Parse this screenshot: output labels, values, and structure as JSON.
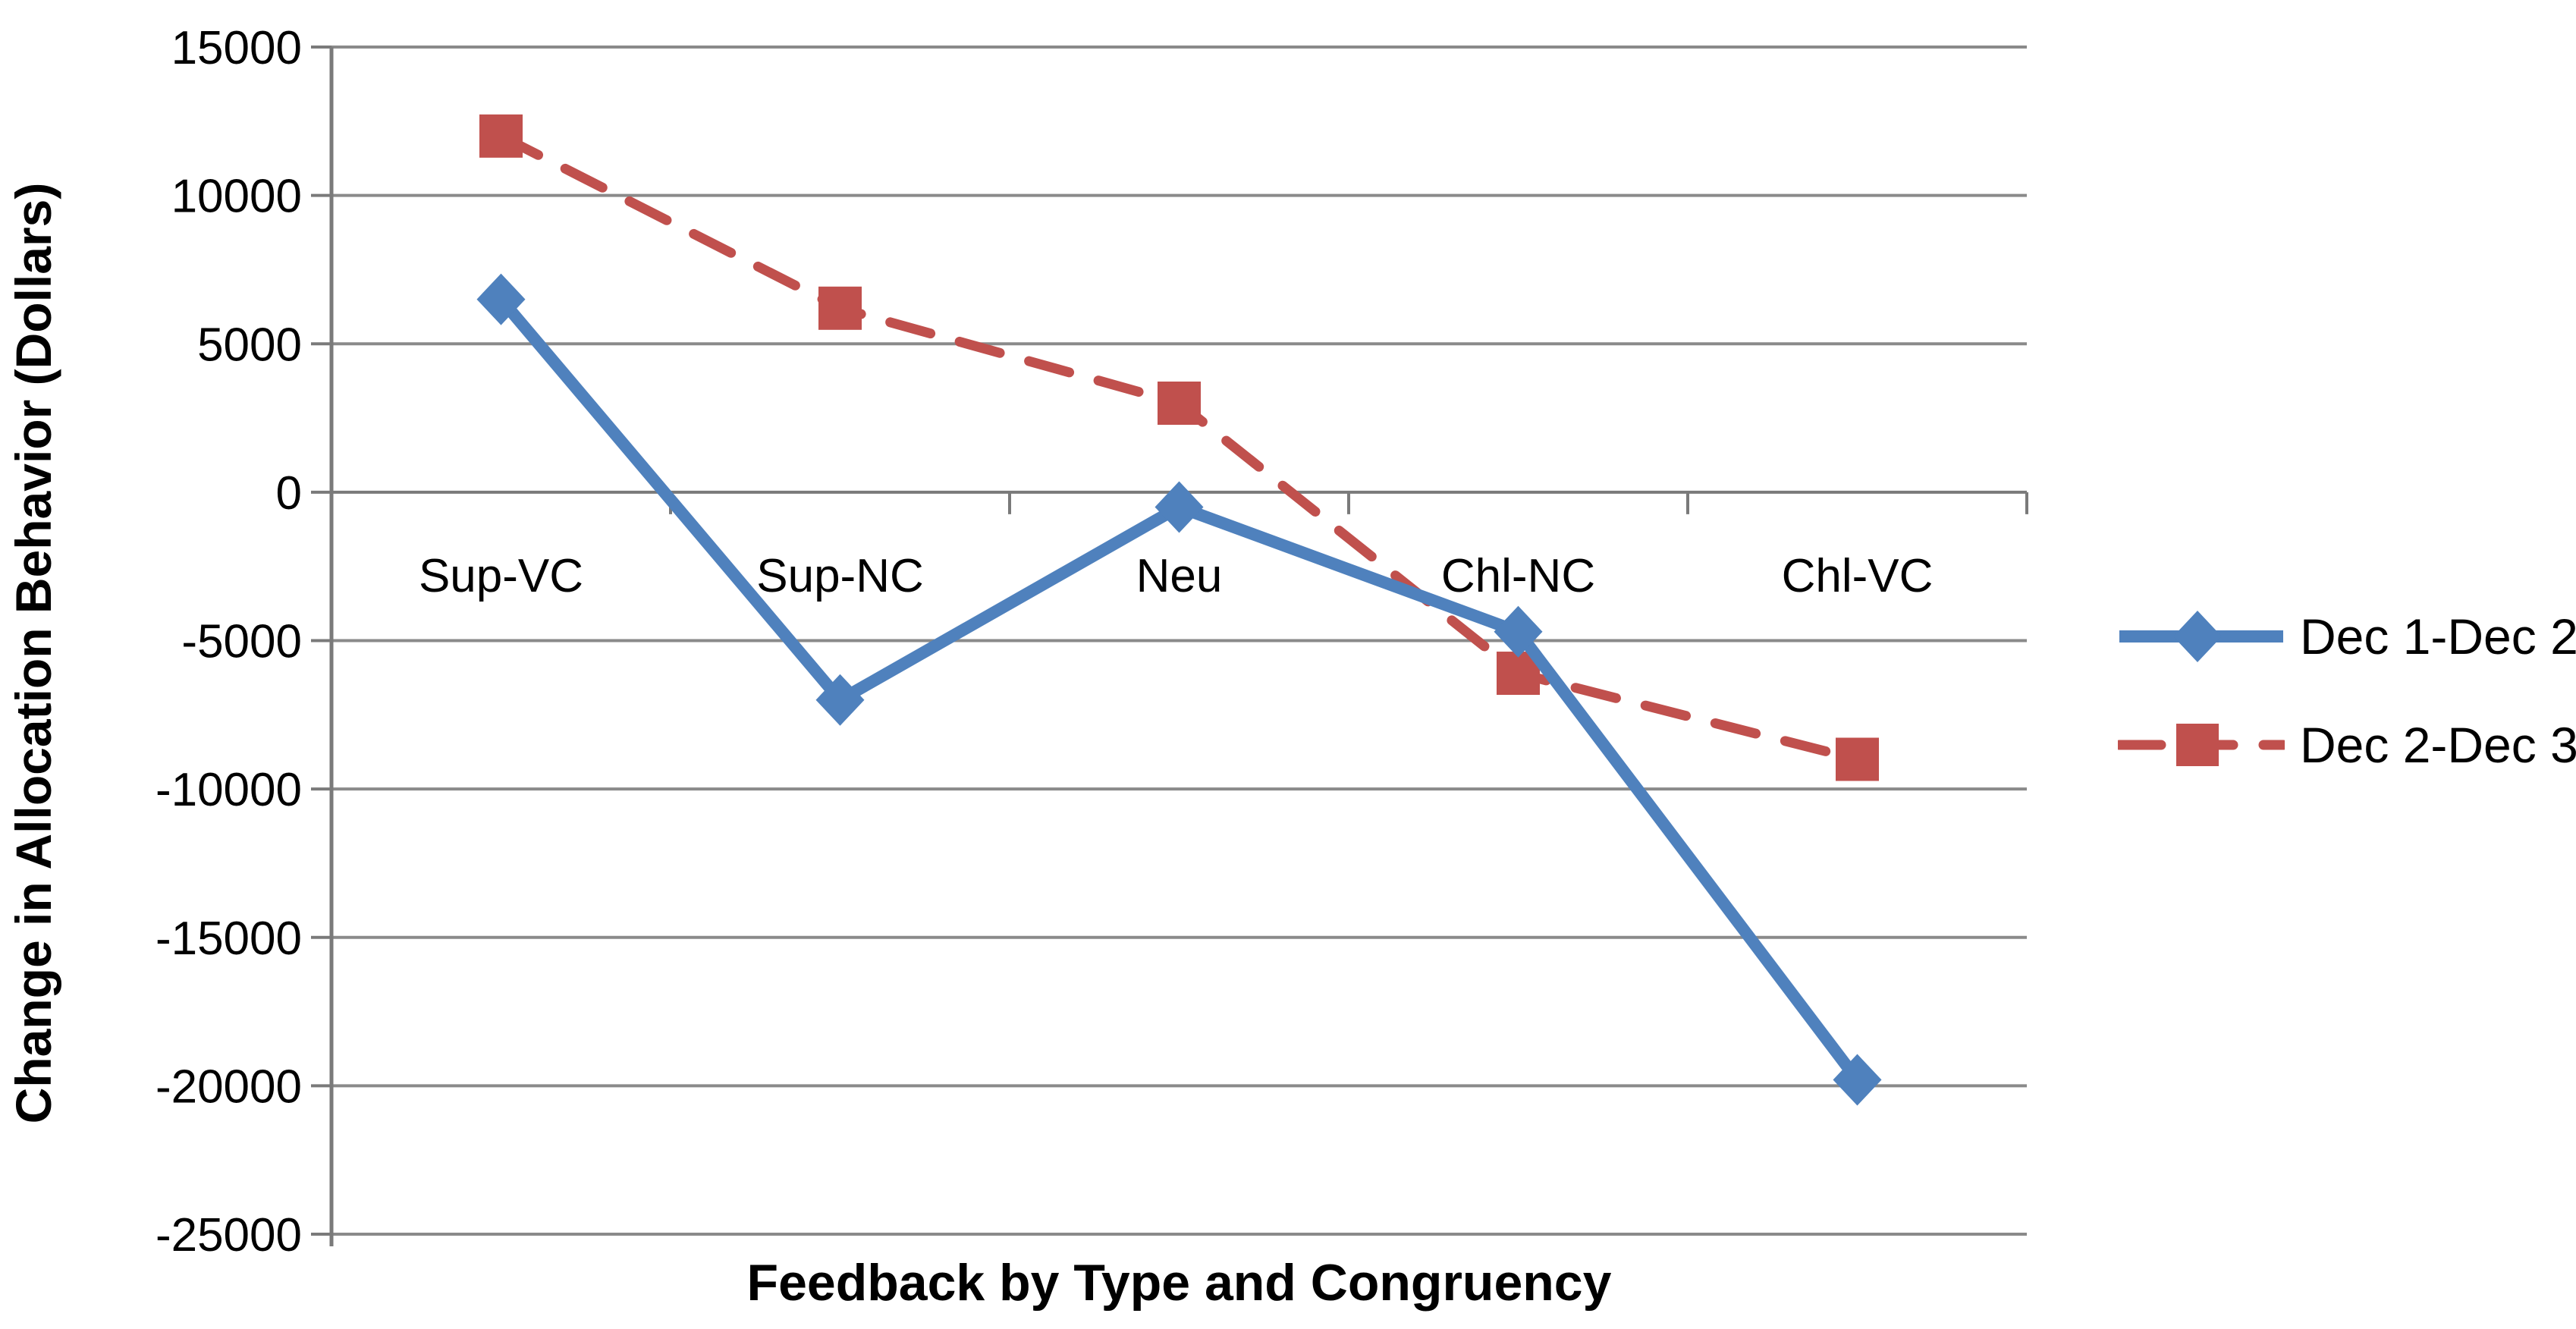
{
  "chart_data": {
    "type": "line",
    "categories": [
      "Sup-VC",
      "Sup-NC",
      "Neu",
      "Chl-NC",
      "Chl-VC"
    ],
    "series": [
      {
        "name": "Dec 1-Dec 2",
        "color": "#4F81BD",
        "marker": "diamond",
        "line_style": "solid",
        "values": [
          6500,
          -7000,
          -500,
          -4700,
          -19800
        ]
      },
      {
        "name": "Dec 2-Dec 3",
        "color": "#C0504D",
        "marker": "square",
        "line_style": "dashed",
        "values": [
          12000,
          6200,
          3000,
          -6100,
          -9000
        ]
      }
    ],
    "title": "",
    "xlabel": "Feedback by Type and Congruency",
    "ylabel": "Change in Allocation Behavior (Dollars)",
    "ylim": [
      -25000,
      15000
    ],
    "ytick_step": 5000,
    "ytick_labels": [
      "15000",
      "10000",
      "5000",
      "0",
      "-5000",
      "-10000",
      "-15000",
      "-20000",
      "-25000"
    ],
    "grid": "horizontal",
    "legend_position": "right",
    "colors": {
      "background": "#FFFFFF",
      "gridline": "#8A8A8A",
      "axis": "#7A7A7A",
      "text": "#000000"
    }
  }
}
